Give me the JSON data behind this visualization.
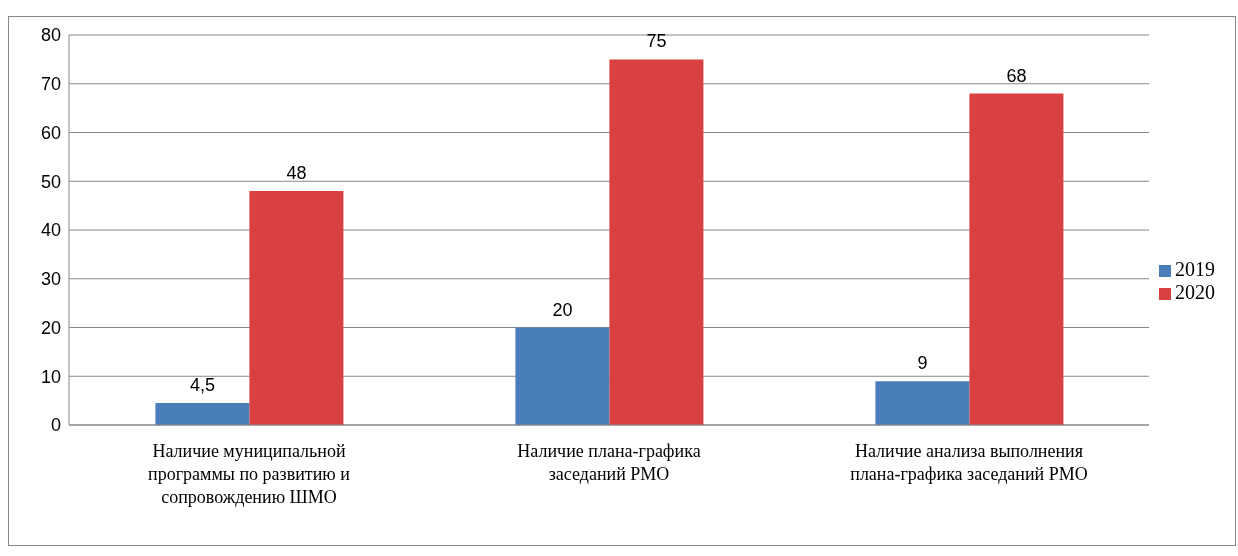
{
  "chart_data": {
    "type": "bar",
    "categories": [
      "Наличие муниципальной программы по развитию и сопровождению ШМО",
      "Наличие плана-графика заседаний РМО",
      "Наличие анализа выполнения плана-графика заседаний РМО"
    ],
    "series": [
      {
        "name": "2019",
        "color": "#4a7ebb",
        "values": [
          4.5,
          20,
          9
        ],
        "value_labels": [
          "4,5",
          "20",
          "9"
        ]
      },
      {
        "name": "2020",
        "color": "#d94040",
        "values": [
          48,
          75,
          68
        ],
        "value_labels": [
          "48",
          "75",
          "68"
        ]
      }
    ],
    "ylim": [
      0,
      80
    ],
    "yticks": [
      0,
      10,
      20,
      30,
      40,
      50,
      60,
      70,
      80
    ],
    "grid": "y",
    "legend": "right"
  }
}
